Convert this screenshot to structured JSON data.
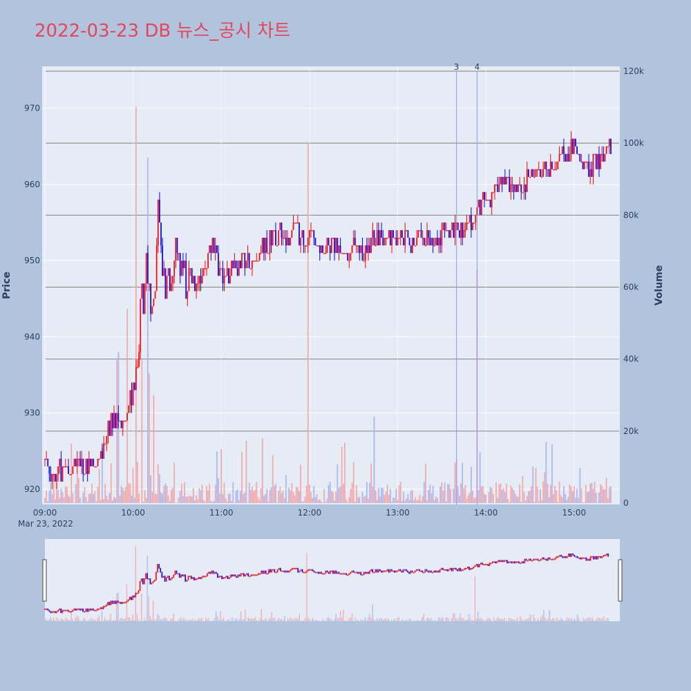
{
  "title": "2022-03-23 DB 뉴스_공시 차트",
  "chart_data": {
    "type": "candlestick",
    "date_label": "Mar 23, 2022",
    "y_axis_title": "Price",
    "y2_axis_title": "Volume",
    "price_range": [
      918,
      975.5
    ],
    "volume_range": [
      0,
      120000
    ],
    "price_ticks": [
      920,
      930,
      940,
      950,
      960,
      970
    ],
    "volume_ticks": [
      {
        "value": 0,
        "label": "0"
      },
      {
        "value": 20000,
        "label": "20k"
      },
      {
        "value": 40000,
        "label": "40k"
      },
      {
        "value": 60000,
        "label": "60k"
      },
      {
        "value": 80000,
        "label": "80k"
      },
      {
        "value": 100000,
        "label": "100k"
      },
      {
        "value": 120000,
        "label": "120k"
      }
    ],
    "x_range_minutes": [
      540,
      933
    ],
    "x_ticks": [
      {
        "minute": 540,
        "label": "09:00"
      },
      {
        "minute": 600,
        "label": "10:00"
      },
      {
        "minute": 660,
        "label": "11:00"
      },
      {
        "minute": 720,
        "label": "12:00"
      },
      {
        "minute": 780,
        "label": "13:00"
      },
      {
        "minute": 840,
        "label": "14:00"
      },
      {
        "minute": 900,
        "label": "15:00"
      }
    ],
    "news_markers": [
      {
        "label": "3",
        "minute": 820
      },
      {
        "label": "4",
        "minute": 834
      }
    ],
    "colors": {
      "up": "#ff0000",
      "down": "#0000ff",
      "volume_up": "#f4a6a6",
      "volume_down": "#a6b6f4",
      "plot_bg": "#e5ecf6",
      "grid": "#ffffff",
      "volume_grid": "#808080",
      "marker": "#8c96ff",
      "title": "#e6455a"
    },
    "price_path": [
      [
        540,
        924
      ],
      [
        545,
        922
      ],
      [
        550,
        922.5
      ],
      [
        555,
        922
      ],
      [
        560,
        923
      ],
      [
        565,
        922.5
      ],
      [
        570,
        923.5
      ],
      [
        575,
        923
      ],
      [
        580,
        926
      ],
      [
        585,
        929
      ],
      [
        590,
        929
      ],
      [
        595,
        929.5
      ],
      [
        600,
        933
      ],
      [
        603,
        938
      ],
      [
        606,
        944
      ],
      [
        609,
        950
      ],
      [
        612,
        945
      ],
      [
        615,
        944
      ],
      [
        617,
        956
      ],
      [
        620,
        948
      ],
      [
        623,
        946
      ],
      [
        626,
        949
      ],
      [
        630,
        952
      ],
      [
        634,
        948
      ],
      [
        638,
        946
      ],
      [
        642,
        947
      ],
      [
        646,
        948
      ],
      [
        650,
        949
      ],
      [
        654,
        952
      ],
      [
        658,
        949
      ],
      [
        662,
        948
      ],
      [
        666,
        948.5
      ],
      [
        670,
        949
      ],
      [
        674,
        949.5
      ],
      [
        678,
        950
      ],
      [
        685,
        951
      ],
      [
        690,
        952
      ],
      [
        695,
        953
      ],
      [
        700,
        953.5
      ],
      [
        705,
        953
      ],
      [
        710,
        954
      ],
      [
        715,
        953
      ],
      [
        720,
        953
      ],
      [
        725,
        952.5
      ],
      [
        730,
        951.5
      ],
      [
        735,
        952
      ],
      [
        740,
        951.5
      ],
      [
        745,
        951
      ],
      [
        750,
        951.5
      ],
      [
        755,
        951
      ],
      [
        760,
        952
      ],
      [
        765,
        953
      ],
      [
        770,
        953
      ],
      [
        775,
        952.5
      ],
      [
        780,
        952.5
      ],
      [
        785,
        953
      ],
      [
        790,
        952
      ],
      [
        795,
        953
      ],
      [
        800,
        952.5
      ],
      [
        805,
        953
      ],
      [
        810,
        953.5
      ],
      [
        815,
        954
      ],
      [
        820,
        954
      ],
      [
        825,
        953.5
      ],
      [
        830,
        955
      ],
      [
        835,
        957
      ],
      [
        838,
        958
      ],
      [
        840,
        959
      ],
      [
        843,
        958
      ],
      [
        846,
        960
      ],
      [
        850,
        959.5
      ],
      [
        855,
        960
      ],
      [
        860,
        959.5
      ],
      [
        865,
        960
      ],
      [
        870,
        961
      ],
      [
        875,
        961.5
      ],
      [
        880,
        962
      ],
      [
        885,
        962.5
      ],
      [
        890,
        963.5
      ],
      [
        895,
        964
      ],
      [
        900,
        965
      ],
      [
        905,
        963
      ],
      [
        910,
        962
      ],
      [
        915,
        963
      ],
      [
        920,
        964
      ],
      [
        925,
        965
      ]
    ]
  }
}
